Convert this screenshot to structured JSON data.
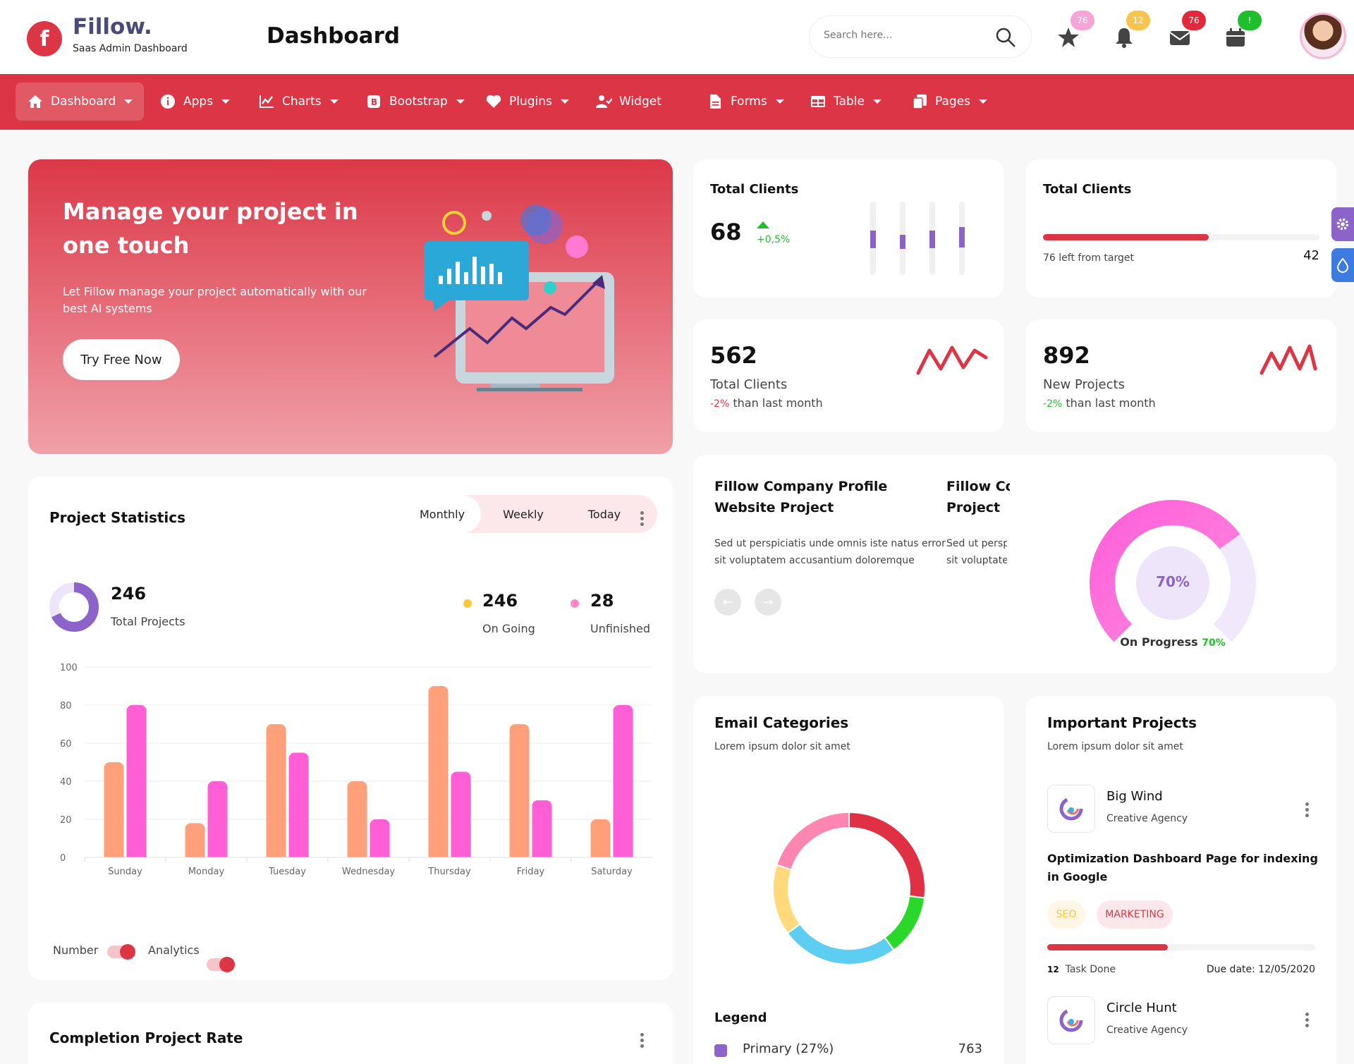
{
  "header": {
    "logo_letter": "f",
    "app_name": "Fillow.",
    "app_sub": "Saas Admin Dashboard",
    "page_title": "Dashboard",
    "search_placeholder": "Search here...",
    "badges": [
      {
        "icon": "star-icon",
        "count": "76",
        "color": "#f7a4d7"
      },
      {
        "icon": "bell-icon",
        "count": "12",
        "color": "#f7c44c"
      },
      {
        "icon": "mail-icon",
        "count": "76",
        "color": "#e3283c"
      },
      {
        "icon": "calendar-icon",
        "count": "!",
        "color": "#1fbf2c"
      }
    ]
  },
  "nav": [
    {
      "label": "Dashboard",
      "icon": "home-icon",
      "active": true,
      "caret": true
    },
    {
      "label": "Apps",
      "icon": "info-icon",
      "caret": true
    },
    {
      "label": "Charts",
      "icon": "chart-icon",
      "caret": true
    },
    {
      "label": "Bootstrap",
      "icon": "bootstrap-icon",
      "caret": true
    },
    {
      "label": "Plugins",
      "icon": "heart-icon",
      "caret": true
    },
    {
      "label": "Widget",
      "icon": "user-check-icon",
      "caret": false
    },
    {
      "label": "Forms",
      "icon": "file-icon",
      "caret": true
    },
    {
      "label": "Table",
      "icon": "table-icon",
      "caret": true
    },
    {
      "label": "Pages",
      "icon": "copy-icon",
      "caret": true
    }
  ],
  "hero": {
    "title": "Manage your project in one touch",
    "text": "Let Fillow manage your project automatically with our best AI systems",
    "button": "Try Free Now"
  },
  "clients1": {
    "title": "Total Clients",
    "value": "68",
    "change": "+0,5%",
    "bars": [
      0.55,
      0.45,
      0.55,
      0.65
    ]
  },
  "clients2": {
    "title": "Total Clients",
    "progress": 0.6,
    "left_text": "76 left from target",
    "value": "42"
  },
  "stat1": {
    "value": "562",
    "label": "Total Clients",
    "change": "-2%",
    "suffix": " than last month"
  },
  "stat2": {
    "value": "892",
    "label": "New Projects",
    "change": "-2%",
    "suffix": " than last month"
  },
  "profile": {
    "title": "Fillow Company Profile Website Project",
    "title2": "Fillow Co",
    "title2b": "Project",
    "desc": "Sed ut perspiciatis unde omnis iste natus error sit voluptatem accusantium doloremque",
    "desc2a": "Sed ut persp",
    "desc2b": "sit voluptate",
    "gauge_value": "70%",
    "gauge_fraction": 0.7,
    "progress_label": "On Progress ",
    "progress_value": "70%"
  },
  "stats": {
    "title": "Project Statistics",
    "tabs": [
      "Monthly",
      "Weekly",
      "Today"
    ],
    "total": "246",
    "total_label": "Total Projects",
    "ongoing": "246",
    "ongoing_label": "On Going",
    "unfinished": "28",
    "unfinished_label": "Unfinished",
    "toggle1": "Number",
    "toggle2": "Analytics"
  },
  "chart_data": {
    "type": "bar",
    "categories": [
      "Sunday",
      "Monday",
      "Tuesday",
      "Wednesday",
      "Thursday",
      "Friday",
      "Saturday"
    ],
    "series": [
      {
        "values": [
          50,
          18,
          70,
          40,
          90,
          70,
          20
        ],
        "color": "#ffa07a"
      },
      {
        "values": [
          80,
          40,
          55,
          20,
          45,
          30,
          80
        ],
        "color": "#ff5ed6"
      }
    ],
    "ylim": [
      0,
      100
    ],
    "yticks": [
      0,
      20,
      40,
      60,
      80,
      100
    ]
  },
  "email": {
    "title": "Email Categories",
    "sub": "Lorem ipsum dolor sit amet",
    "legend_title": "Legend",
    "legend_item": "Primary (27%)",
    "legend_value": "763",
    "slices": [
      {
        "value": 27,
        "color": "#e03144"
      },
      {
        "value": 13,
        "color": "#2ad82a"
      },
      {
        "value": 25,
        "color": "#5ecdf2"
      },
      {
        "value": 15,
        "color": "#ffd97a"
      },
      {
        "value": 20,
        "color": "#ff86b0"
      }
    ],
    "legend_color": "#8b63c9"
  },
  "important": {
    "title": "Important Projects",
    "sub": "Lorem ipsum dolor sit amet",
    "p1_name": "Big Wind",
    "p1_sub": "Creative Agency",
    "p1_task": "Optimization Dashboard Page for indexing in Google",
    "tag1": "SEO",
    "tag2": "MARKETING",
    "task_count": "12",
    "task_label": "Task Done",
    "due": "Due date: 12/05/2020",
    "progress": 0.45,
    "p2_name": "Circle Hunt",
    "p2_sub": "Creative Agency"
  },
  "completion": {
    "title": "Completion Project Rate"
  }
}
